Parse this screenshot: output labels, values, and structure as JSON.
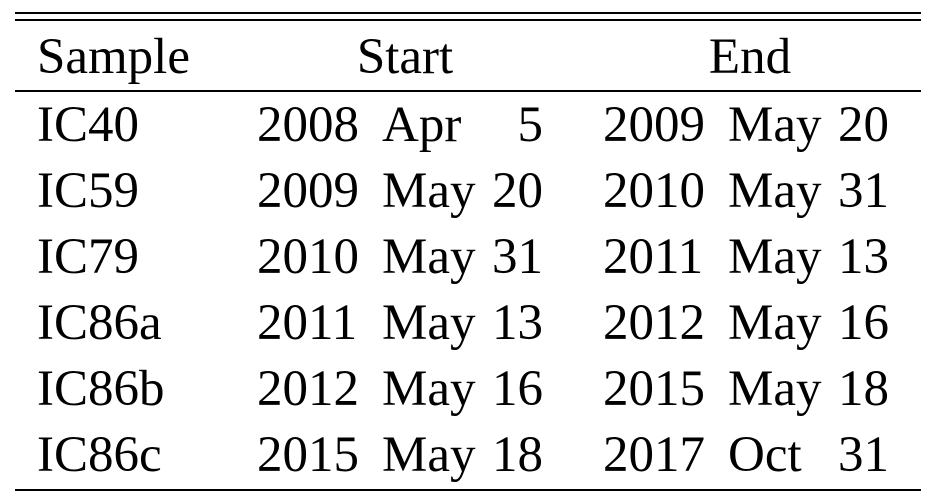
{
  "header": {
    "sample": "Sample",
    "start": "Start",
    "end": "End"
  },
  "rows": [
    {
      "sample": "IC40",
      "start": {
        "year": "2008",
        "month": "Apr",
        "day": "5"
      },
      "end": {
        "year": "2009",
        "month": "May",
        "day": "20"
      }
    },
    {
      "sample": "IC59",
      "start": {
        "year": "2009",
        "month": "May",
        "day": "20"
      },
      "end": {
        "year": "2010",
        "month": "May",
        "day": "31"
      }
    },
    {
      "sample": "IC79",
      "start": {
        "year": "2010",
        "month": "May",
        "day": "31"
      },
      "end": {
        "year": "2011",
        "month": "May",
        "day": "13"
      }
    },
    {
      "sample": "IC86a",
      "start": {
        "year": "2011",
        "month": "May",
        "day": "13"
      },
      "end": {
        "year": "2012",
        "month": "May",
        "day": "16"
      }
    },
    {
      "sample": "IC86b",
      "start": {
        "year": "2012",
        "month": "May",
        "day": "16"
      },
      "end": {
        "year": "2015",
        "month": "May",
        "day": "18"
      }
    },
    {
      "sample": "IC86c",
      "start": {
        "year": "2015",
        "month": "May",
        "day": "18"
      },
      "end": {
        "year": "2017",
        "month": "Oct",
        "day": "31"
      }
    }
  ]
}
